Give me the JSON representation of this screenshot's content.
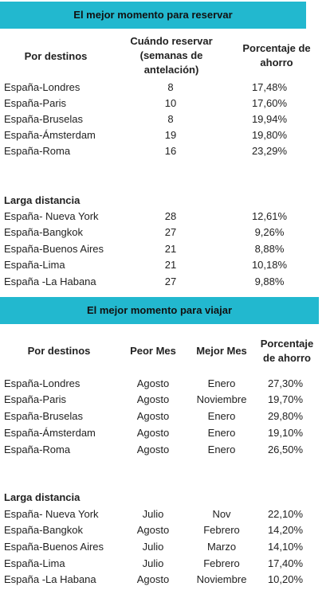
{
  "booking": {
    "title": "El mejor momento para reservar",
    "headers": {
      "destino": "Por destinos",
      "semanas": "Cuándo reservar (semanas de antelación)",
      "ahorro": "Porcentaje de ahorro"
    },
    "rows": [
      {
        "destino": "España-Londres",
        "semanas": "8",
        "ahorro": "17,48%"
      },
      {
        "destino": "España-Paris",
        "semanas": "10",
        "ahorro": "17,60%"
      },
      {
        "destino": "España-Bruselas",
        "semanas": "8",
        "ahorro": "19,94%"
      },
      {
        "destino": "España-Ámsterdam",
        "semanas": "19",
        "ahorro": "19,80%"
      },
      {
        "destino": "España-Roma",
        "semanas": "16",
        "ahorro": "23,29%"
      }
    ],
    "long_title": "Larga distancia",
    "long_rows": [
      {
        "destino": "España- Nueva York",
        "semanas": "28",
        "ahorro": "12,61%"
      },
      {
        "destino": "España-Bangkok",
        "semanas": "27",
        "ahorro": "9,26%"
      },
      {
        "destino": "España-Buenos Aires",
        "semanas": "21",
        "ahorro": "8,88%"
      },
      {
        "destino": "España-Lima",
        "semanas": "21",
        "ahorro": "10,18%"
      },
      {
        "destino": "España -La Habana",
        "semanas": "27",
        "ahorro": "9,88%"
      }
    ]
  },
  "travel": {
    "title": "El mejor momento para viajar",
    "headers": {
      "destino": "Por destinos",
      "peor": "Peor Mes",
      "mejor": "Mejor Mes",
      "ahorro": "Porcentaje de ahorro"
    },
    "rows": [
      {
        "destino": "España-Londres",
        "peor": "Agosto",
        "mejor": "Enero",
        "ahorro": "27,30%"
      },
      {
        "destino": "España-Paris",
        "peor": "Agosto",
        "mejor": "Noviembre",
        "ahorro": "19,70%"
      },
      {
        "destino": "España-Bruselas",
        "peor": "Agosto",
        "mejor": "Enero",
        "ahorro": "29,80%"
      },
      {
        "destino": "España-Ámsterdam",
        "peor": "Agosto",
        "mejor": "Enero",
        "ahorro": "19,10%"
      },
      {
        "destino": "España-Roma",
        "peor": "Agosto",
        "mejor": "Enero",
        "ahorro": "26,50%"
      }
    ],
    "long_title": "Larga distancia",
    "long_rows": [
      {
        "destino": "España- Nueva York",
        "peor": "Julio",
        "mejor": "Nov",
        "ahorro": "22,10%"
      },
      {
        "destino": "España-Bangkok",
        "peor": "Agosto",
        "mejor": "Febrero",
        "ahorro": "14,20%"
      },
      {
        "destino": "España-Buenos Aires",
        "peor": "Julio",
        "mejor": "Marzo",
        "ahorro": "14,10%"
      },
      {
        "destino": "España-Lima",
        "peor": "Julio",
        "mejor": "Febrero",
        "ahorro": "17,40%"
      },
      {
        "destino": "España -La Habana",
        "peor": "Agosto",
        "mejor": "Noviembre",
        "ahorro": "10,20%"
      }
    ]
  }
}
